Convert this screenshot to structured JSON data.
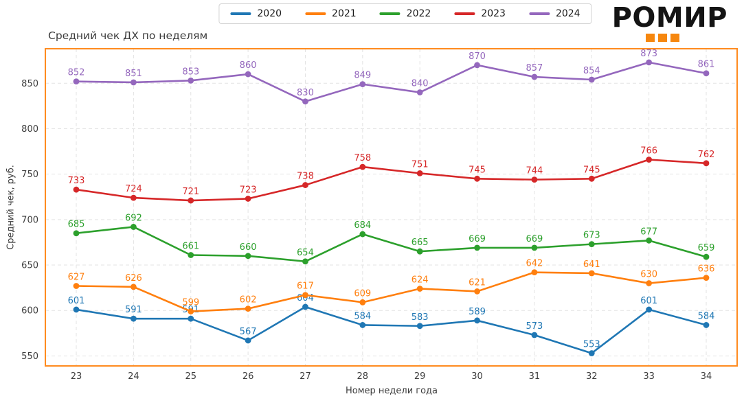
{
  "header": {
    "logo": {
      "text": "РОМИР",
      "accent_color": "#f6870f",
      "squares": 3
    }
  },
  "chart_data": {
    "type": "line",
    "title": "Средний чек ДХ по неделям",
    "xlabel": "Номер недели года",
    "ylabel": "Средний чек, руб.",
    "x": [
      23,
      24,
      25,
      26,
      27,
      28,
      29,
      30,
      31,
      32,
      33,
      34
    ],
    "yticks": [
      550,
      600,
      650,
      700,
      750,
      800,
      850
    ],
    "ylim": [
      539,
      888
    ],
    "grid": true,
    "grid_style": "dashed",
    "legend_position": "top-center",
    "plot_border_color": "#ff8b1f",
    "series": [
      {
        "name": "2020",
        "color": "#1f77b4",
        "values": [
          601,
          591,
          591,
          567,
          604,
          584,
          583,
          589,
          573,
          553,
          601,
          584
        ]
      },
      {
        "name": "2021",
        "color": "#ff7f0e",
        "values": [
          627,
          626,
          599,
          602,
          617,
          609,
          624,
          621,
          642,
          641,
          630,
          636
        ]
      },
      {
        "name": "2022",
        "color": "#2ca02c",
        "values": [
          685,
          692,
          661,
          660,
          654,
          684,
          665,
          669,
          669,
          673,
          677,
          659
        ]
      },
      {
        "name": "2023",
        "color": "#d62728",
        "values": [
          733,
          724,
          721,
          723,
          738,
          758,
          751,
          745,
          744,
          745,
          766,
          762
        ]
      },
      {
        "name": "2024",
        "color": "#9467bd",
        "values": [
          852,
          851,
          853,
          860,
          830,
          849,
          840,
          870,
          857,
          854,
          873,
          861
        ]
      }
    ]
  }
}
